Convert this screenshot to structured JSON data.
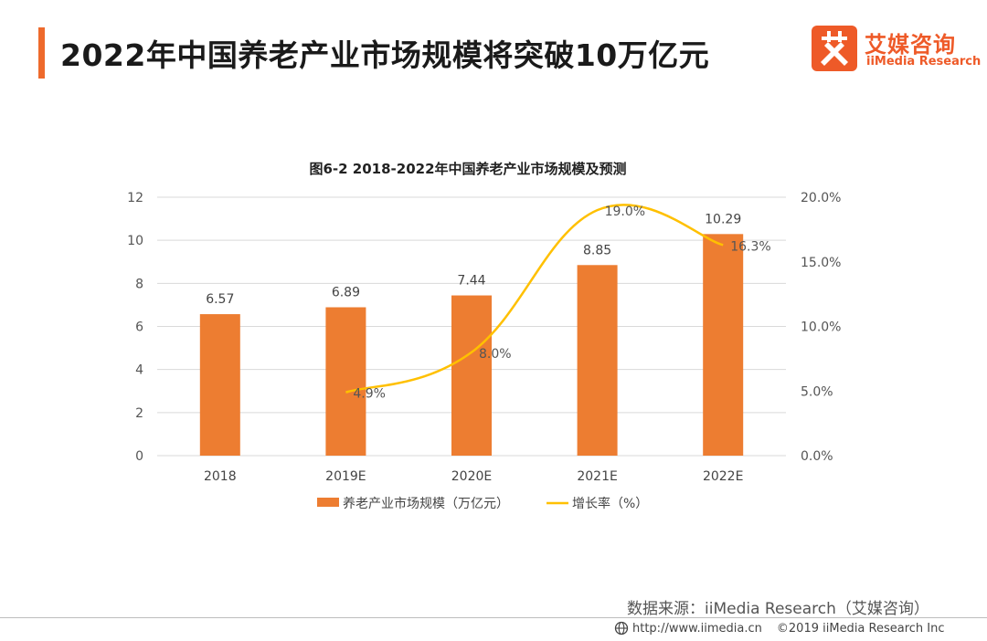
{
  "header": {
    "title": "2022年中国养老产业市场规模将突破10万亿元"
  },
  "logo": {
    "name_cn": "艾媒咨询",
    "name_en": "iiMedia Research"
  },
  "chart_data": {
    "type": "bar",
    "title": "图6-2 2018-2022年中国养老产业市场规模及预测",
    "categories": [
      "2018",
      "2019E",
      "2020E",
      "2021E",
      "2022E"
    ],
    "series": [
      {
        "name": "养老产业市场规模（万亿元）",
        "type": "bar",
        "axis": "left",
        "color": "#ed7d31",
        "values": [
          6.57,
          6.89,
          7.44,
          8.85,
          10.29
        ],
        "labels": [
          "6.57",
          "6.89",
          "7.44",
          "8.85",
          "10.29"
        ]
      },
      {
        "name": "增长率（%）",
        "type": "line",
        "axis": "right",
        "color": "#ffc000",
        "values": [
          null,
          4.9,
          8.0,
          19.0,
          16.3
        ],
        "labels": [
          "",
          "4.9%",
          "8.0%",
          "19.0%",
          "16.3%"
        ]
      }
    ],
    "y_left": {
      "min": 0,
      "max": 12,
      "ticks": [
        "0",
        "2",
        "4",
        "6",
        "8",
        "10",
        "12"
      ]
    },
    "y_right": {
      "min": 0,
      "max": 20,
      "ticks": [
        "0.0%",
        "5.0%",
        "10.0%",
        "15.0%",
        "20.0%"
      ]
    },
    "grid": true,
    "legend": "bottom"
  },
  "source": {
    "text": "数据来源：iiMedia Research（艾媒咨询）"
  },
  "footer": {
    "url": "http://www.iimedia.cn",
    "copyright": "©2019 iiMedia Research Inc"
  },
  "colors": {
    "accent": "#ee6a2c",
    "brand": "#ee5a28",
    "bar": "#ed7d31",
    "line": "#ffc000"
  }
}
